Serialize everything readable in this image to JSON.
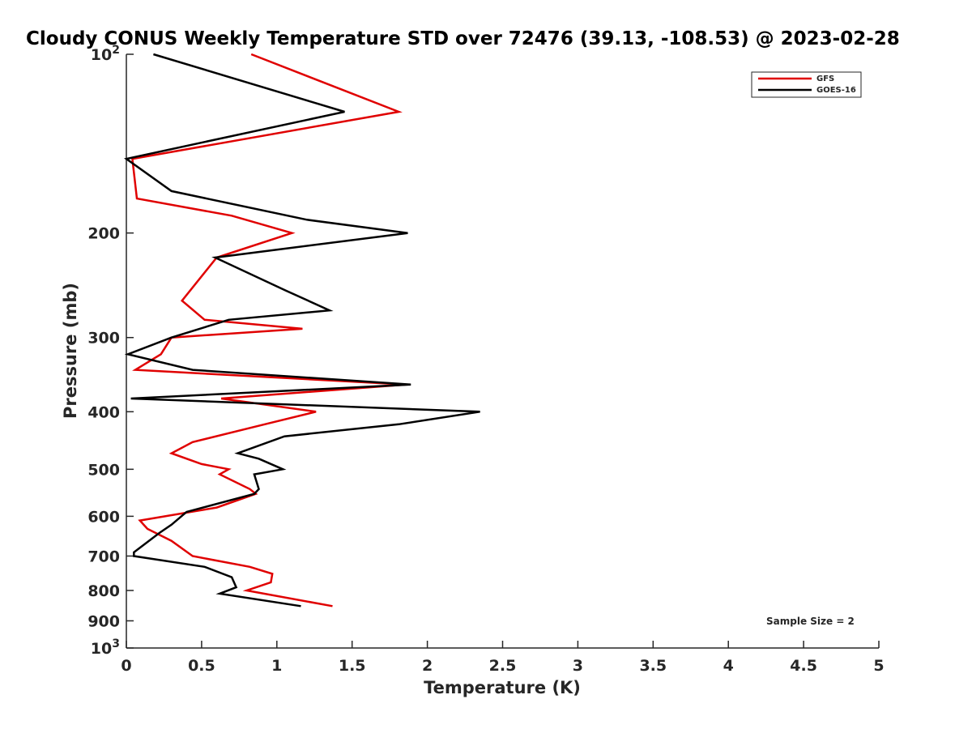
{
  "chart_data": {
    "type": "line",
    "title": "Cloudy CONUS Weekly Temperature STD over 72476 (39.13, -108.53) @ 2023-02-28",
    "xlabel": "Temperature (K)",
    "ylabel": "Pressure (mb)",
    "xlim": [
      0,
      5
    ],
    "ylim": [
      100,
      1000
    ],
    "y_scale": "log",
    "y_reversed": true,
    "grid": false,
    "legend_position": "top-right",
    "annotation": "Sample Size = 2",
    "x_ticks": [
      {
        "value": 0,
        "label": "0"
      },
      {
        "value": 0.5,
        "label": "0.5"
      },
      {
        "value": 1,
        "label": "1"
      },
      {
        "value": 1.5,
        "label": "1.5"
      },
      {
        "value": 2,
        "label": "2"
      },
      {
        "value": 2.5,
        "label": "2.5"
      },
      {
        "value": 3,
        "label": "3"
      },
      {
        "value": 3.5,
        "label": "3.5"
      },
      {
        "value": 4,
        "label": "4"
      },
      {
        "value": 4.5,
        "label": "4.5"
      },
      {
        "value": 5,
        "label": "5"
      }
    ],
    "y_ticks": [
      {
        "value": 100,
        "label": "10",
        "sup": "2"
      },
      {
        "value": 200,
        "label": "200"
      },
      {
        "value": 300,
        "label": "300"
      },
      {
        "value": 400,
        "label": "400"
      },
      {
        "value": 500,
        "label": "500"
      },
      {
        "value": 600,
        "label": "600"
      },
      {
        "value": 700,
        "label": "700"
      },
      {
        "value": 800,
        "label": "800"
      },
      {
        "value": 900,
        "label": "900"
      },
      {
        "value": 1000,
        "label": "10",
        "sup": "3"
      }
    ],
    "series": [
      {
        "name": "GFS",
        "color": "#e00000",
        "points": [
          [
            0.83,
            100
          ],
          [
            1.81,
            125
          ],
          [
            0.04,
            150
          ],
          [
            0.07,
            175
          ],
          [
            0.7,
            187
          ],
          [
            1.1,
            200
          ],
          [
            0.6,
            220
          ],
          [
            0.37,
            260
          ],
          [
            0.52,
            280
          ],
          [
            1.17,
            290
          ],
          [
            0.3,
            300
          ],
          [
            0.23,
            320
          ],
          [
            0.06,
            340
          ],
          [
            1.86,
            360
          ],
          [
            0.63,
            380
          ],
          [
            1.26,
            400
          ],
          [
            0.92,
            420
          ],
          [
            0.44,
            450
          ],
          [
            0.3,
            470
          ],
          [
            0.5,
            490
          ],
          [
            0.68,
            500
          ],
          [
            0.62,
            510
          ],
          [
            0.82,
            540
          ],
          [
            0.86,
            550
          ],
          [
            0.6,
            580
          ],
          [
            0.09,
            610
          ],
          [
            0.14,
            630
          ],
          [
            0.3,
            660
          ],
          [
            0.44,
            700
          ],
          [
            0.82,
            730
          ],
          [
            0.97,
            750
          ],
          [
            0.96,
            775
          ],
          [
            0.8,
            800
          ],
          [
            1.37,
            850
          ]
        ]
      },
      {
        "name": "GOES-16",
        "color": "#000000",
        "points": [
          [
            0.18,
            100
          ],
          [
            1.45,
            125
          ],
          [
            0.0,
            150
          ],
          [
            0.3,
            170
          ],
          [
            1.2,
            190
          ],
          [
            1.87,
            200
          ],
          [
            0.59,
            220
          ],
          [
            1.06,
            250
          ],
          [
            1.35,
            270
          ],
          [
            0.68,
            280
          ],
          [
            0.3,
            300
          ],
          [
            0.01,
            320
          ],
          [
            0.44,
            340
          ],
          [
            1.89,
            360
          ],
          [
            0.03,
            380
          ],
          [
            2.35,
            400
          ],
          [
            1.81,
            420
          ],
          [
            1.05,
            440
          ],
          [
            0.74,
            470
          ],
          [
            0.88,
            480
          ],
          [
            1.04,
            500
          ],
          [
            0.85,
            510
          ],
          [
            0.88,
            540
          ],
          [
            0.85,
            550
          ],
          [
            0.4,
            590
          ],
          [
            0.3,
            620
          ],
          [
            0.22,
            640
          ],
          [
            0.05,
            690
          ],
          [
            0.05,
            700
          ],
          [
            0.52,
            730
          ],
          [
            0.7,
            760
          ],
          [
            0.73,
            790
          ],
          [
            0.62,
            810
          ],
          [
            1.16,
            850
          ]
        ]
      }
    ]
  }
}
